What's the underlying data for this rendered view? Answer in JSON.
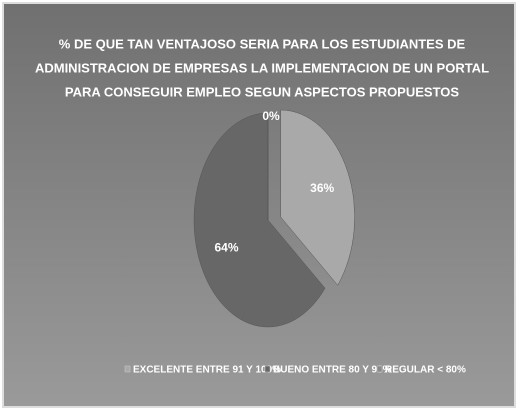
{
  "chart_data": {
    "type": "pie",
    "title": [
      "% DE QUE TAN VENTAJOSO SERIA  PARA LOS ESTUDIANTES DE",
      "ADMINISTRACION DE EMPRESAS  LA  IMPLEMENTACION DE UN PORTAL",
      "PARA CONSEGUIR EMPLEO SEGUN  ASPECTOS PROPUESTOS"
    ],
    "categories": [
      "EXCELENTE ENTRE 91 Y 100%",
      "BUENO ENTRE 80 Y 90%",
      "REGULAR < 80%"
    ],
    "values": [
      36,
      64,
      0
    ],
    "value_labels": [
      "36%",
      "64%",
      "0%"
    ],
    "colors": [
      "#a9a9a9",
      "#676767",
      "#8a8a8a"
    ],
    "legend": "bottom"
  }
}
